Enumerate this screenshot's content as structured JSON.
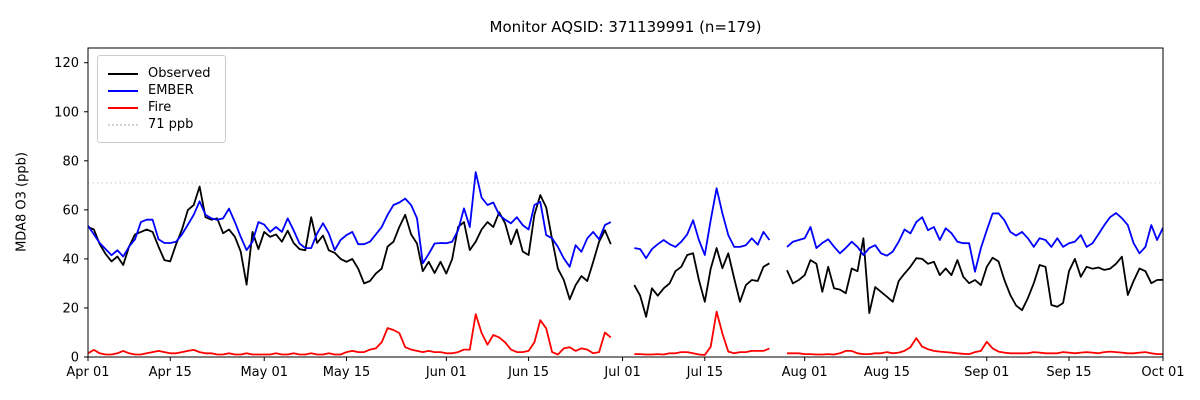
{
  "title": "Monitor AQSID: 371139991 (n=179)",
  "axes": {
    "ylabel": "MDA8 O3 (ppb)",
    "ylim": [
      0,
      126
    ],
    "yticks": [
      0,
      20,
      40,
      60,
      80,
      100,
      120
    ],
    "xlim_days": [
      0,
      183
    ],
    "xticks": [
      {
        "label": "Apr 01",
        "day": 0
      },
      {
        "label": "Apr 15",
        "day": 14
      },
      {
        "label": "May 01",
        "day": 30
      },
      {
        "label": "May 15",
        "day": 44
      },
      {
        "label": "Jun 01",
        "day": 61
      },
      {
        "label": "Jun 15",
        "day": 75
      },
      {
        "label": "Jul 01",
        "day": 91
      },
      {
        "label": "Jul 15",
        "day": 105
      },
      {
        "label": "Aug 01",
        "day": 122
      },
      {
        "label": "Aug 15",
        "day": 136
      },
      {
        "label": "Sep 01",
        "day": 153
      },
      {
        "label": "Sep 15",
        "day": 167
      },
      {
        "label": "Oct 01",
        "day": 183
      }
    ]
  },
  "legend": [
    {
      "label": "Observed",
      "color": "#000000",
      "style": "solid"
    },
    {
      "label": "EMBER",
      "color": "#0000ff",
      "style": "solid"
    },
    {
      "label": "Fire",
      "color": "#ff0000",
      "style": "solid"
    },
    {
      "label": "71 ppb",
      "color": "#d3d3d3",
      "style": "dotted"
    }
  ],
  "chart_data": {
    "type": "line",
    "title": "Monitor AQSID: 371139991 (n=179)",
    "xlabel": "",
    "ylabel": "MDA8 O3 (ppb)",
    "x_unit": "days since Apr 01 (daily values, Apr 01 - Oct 01)",
    "x_start_date": "Apr 01",
    "x_end_date": "Oct 01",
    "missing_dates": [
      "Jun 30",
      "Jul 01",
      "Jul 02",
      "Jul 27",
      "Jul 28"
    ],
    "n_points": 179,
    "threshold": {
      "label": "71 ppb",
      "value": 71,
      "color": "#d3d3d3",
      "style": "dotted"
    },
    "legend_position": "upper left",
    "grid": false,
    "series": [
      {
        "name": "Observed",
        "color": "#000000",
        "values": [
          53,
          52,
          46,
          42,
          39,
          41,
          37.5,
          45,
          50,
          51,
          52,
          51,
          45,
          39.5,
          39,
          46,
          52,
          60,
          62,
          69.5,
          57,
          56,
          56.5,
          50.5,
          52,
          49,
          43,
          29.5,
          51,
          44,
          51,
          49,
          50,
          47,
          51.5,
          46.5,
          44,
          43.5,
          57,
          46.5,
          49.5,
          43.5,
          42.5,
          40,
          38.8,
          40,
          36,
          30,
          31,
          34,
          36,
          45,
          47,
          53,
          58,
          50,
          46.3,
          35,
          38.8,
          34.2,
          38.8,
          34,
          40,
          53,
          55,
          43.6,
          47,
          52,
          55,
          53,
          59,
          54.5,
          46,
          52,
          43,
          41.6,
          58,
          66,
          61,
          48,
          36,
          31.4,
          23.5,
          29.3,
          33,
          31,
          38.8,
          47,
          51.7,
          46,
          null,
          null,
          null,
          29.3,
          25,
          16.4,
          28,
          25,
          28,
          30,
          35,
          36.8,
          41.6,
          42.3,
          31.4,
          22.5,
          36,
          44.4,
          36.2,
          42.3,
          32,
          22.5,
          29.3,
          31.4,
          31,
          36.8,
          38.2,
          null,
          null,
          35.4,
          30,
          31.4,
          33.4,
          39.5,
          38,
          26.6,
          36.8,
          28,
          27.5,
          26,
          36.1,
          35,
          48.4,
          17.9,
          28.5,
          26.6,
          24.6,
          22.5,
          31,
          34,
          36.8,
          40.3,
          40,
          38,
          38.8,
          33.4,
          36.1,
          33.4,
          39.5,
          32.7,
          30.1,
          31.4,
          29.3,
          36.8,
          40.5,
          39,
          31.4,
          25.3,
          21,
          19.1,
          24,
          30.1,
          37.5,
          36.8,
          21.2,
          20.5,
          22,
          35,
          40,
          32.7,
          36.8,
          36,
          36.5,
          35.5,
          36,
          38,
          40.9,
          25.3,
          31,
          36.1,
          35,
          30.1,
          31.4,
          31.5
        ]
      },
      {
        "name": "EMBER",
        "color": "#0000ff",
        "values": [
          53.5,
          50,
          46.5,
          44,
          41.5,
          43.5,
          41,
          45,
          48,
          55,
          56,
          56,
          48,
          46.5,
          46.5,
          47,
          50,
          54,
          58,
          63.5,
          58,
          56.5,
          56,
          56.5,
          60.5,
          55,
          49,
          43.6,
          47,
          55,
          54,
          51,
          53,
          51,
          56.5,
          51.7,
          46.3,
          44.4,
          44.4,
          50.4,
          54.5,
          50.4,
          43.6,
          47.7,
          49.7,
          51,
          46,
          46,
          47,
          50,
          53,
          58,
          62,
          63,
          64.6,
          62,
          56.6,
          38.2,
          42,
          46.3,
          46.5,
          46.4,
          47,
          51.7,
          60.6,
          53,
          75.4,
          65,
          62,
          63,
          58,
          56,
          54.5,
          57,
          53.8,
          52,
          62,
          63.3,
          49.7,
          48.4,
          44.9,
          40.2,
          36.8,
          45.6,
          42.9,
          48.4,
          51,
          48,
          53.8,
          55,
          null,
          null,
          null,
          44.4,
          44,
          40.3,
          44,
          46,
          47.7,
          46,
          44.9,
          47,
          50,
          55.8,
          47.7,
          41.6,
          55.8,
          68.8,
          58.6,
          49.7,
          44.9,
          44.9,
          45.6,
          48.4,
          45.8,
          51,
          47.7,
          null,
          null,
          44.9,
          47,
          47.7,
          48.4,
          53,
          44.4,
          46.5,
          48,
          45,
          42.3,
          44.5,
          47,
          44.9,
          41.6,
          44.4,
          45.6,
          42.3,
          41.3,
          43,
          47,
          52,
          50.4,
          55,
          57,
          51.7,
          53,
          47.7,
          52.5,
          50.5,
          47,
          46.4,
          46.4,
          34.8,
          44.4,
          51.7,
          58.5,
          58.6,
          55.8,
          51,
          49.5,
          51,
          48.4,
          44.9,
          48.4,
          47.7,
          44.9,
          48.4,
          44.9,
          46.4,
          47,
          49.7,
          44.9,
          46.4,
          50,
          53.8,
          57,
          58.7,
          56.6,
          53.8,
          46.4,
          42.3,
          44.9,
          53.8,
          47.7,
          52.7
        ]
      },
      {
        "name": "Fire",
        "color": "#ff0000",
        "values": [
          1.5,
          2.9,
          1.5,
          1,
          1,
          1.5,
          2.5,
          1.5,
          1,
          1,
          1.5,
          2,
          2.5,
          2,
          1.5,
          1.5,
          2,
          2.5,
          2.9,
          2,
          1.5,
          1.5,
          1,
          1,
          1.5,
          1,
          1,
          1.5,
          1,
          1,
          1,
          1,
          1.5,
          1,
          1,
          1.5,
          1,
          1,
          1.5,
          1,
          1,
          1.5,
          1,
          1,
          2,
          2.5,
          2,
          2,
          3,
          3.5,
          6,
          11.8,
          11,
          9.8,
          4,
          3,
          2.5,
          2,
          2.5,
          2,
          2,
          1.5,
          1.5,
          2,
          3,
          3,
          17.5,
          9.8,
          5,
          9,
          8,
          6,
          3,
          2,
          2,
          2.5,
          6,
          15,
          11.7,
          2,
          1,
          3.5,
          4,
          2.5,
          3.5,
          3,
          1.5,
          2,
          10,
          8,
          null,
          null,
          null,
          1.2,
          1.2,
          1,
          1,
          1.2,
          1,
          1.5,
          1.5,
          2,
          2,
          1.5,
          1,
          0.8,
          4.2,
          18.5,
          9.6,
          2.2,
          1.5,
          2,
          2,
          2.5,
          2.5,
          2.5,
          3.5,
          null,
          null,
          1.5,
          1.5,
          1.5,
          1.2,
          1.2,
          1,
          1,
          1.2,
          1,
          1.5,
          2.5,
          2.5,
          1.5,
          1.2,
          1.2,
          1.5,
          1.5,
          2,
          1.5,
          1.8,
          2.5,
          4,
          7.7,
          4.2,
          3.2,
          2.5,
          2.2,
          2,
          1.8,
          1.5,
          1.3,
          1.2,
          2,
          2.5,
          6.2,
          3.5,
          2.2,
          1.8,
          1.5,
          1.5,
          1.5,
          1.5,
          2,
          1.8,
          1.5,
          1.5,
          1.5,
          2,
          1.8,
          1.5,
          1.8,
          2,
          1.8,
          1.5,
          2,
          2.2,
          2,
          1.8,
          1.5,
          1.5,
          1.8,
          2,
          1.5,
          1.2,
          1.2
        ]
      }
    ]
  }
}
